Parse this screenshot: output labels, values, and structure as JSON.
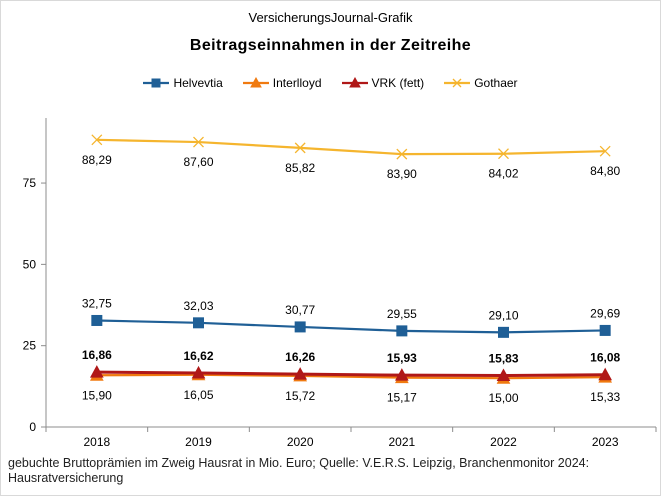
{
  "header": {
    "source": "VersicherungsJournal-Grafik",
    "title": "Beitragseinnahmen  in der Zeitreihe"
  },
  "footnote": "gebuchte Bruttoprämien im Zweig Hausrat in Mio. Euro; Quelle: V.E.R.S. Leipzig, Branchenmonitor  2024: Hausratversicherung",
  "chart_data": {
    "type": "line",
    "title": "Beitragseinnahmen  in der Zeitreihe",
    "xlabel": "",
    "ylabel": "",
    "categories": [
      "2018",
      "2019",
      "2020",
      "2021",
      "2022",
      "2023"
    ],
    "ylim": [
      0,
      95
    ],
    "yticks": [
      "0",
      "25",
      "50",
      "75"
    ],
    "ytick_values": [
      0,
      25,
      50,
      75
    ],
    "legend_position": "top",
    "grid": false,
    "series": [
      {
        "name": "Helvevtia",
        "color": "#1f5f96",
        "marker": "square",
        "bold_labels": false,
        "label_position": "above",
        "values": [
          32.75,
          32.03,
          30.77,
          29.55,
          29.1,
          29.69
        ],
        "labels": [
          "32,75",
          "32,03",
          "30,77",
          "29,55",
          "29,10",
          "29,69"
        ]
      },
      {
        "name": "Interlloyd",
        "color": "#f07a10",
        "marker": "triangle",
        "bold_labels": false,
        "label_position": "below",
        "values": [
          15.9,
          16.05,
          15.72,
          15.17,
          15.0,
          15.33
        ],
        "labels": [
          "15,90",
          "16,05",
          "15,72",
          "15,17",
          "15,00",
          "15,33"
        ]
      },
      {
        "name": "VRK (fett)",
        "color": "#b01818",
        "marker": "triangle",
        "bold_labels": true,
        "label_position": "above",
        "values": [
          16.86,
          16.62,
          16.26,
          15.93,
          15.83,
          16.08
        ],
        "labels": [
          "16,86",
          "16,62",
          "16,26",
          "15,93",
          "15,83",
          "16,08"
        ]
      },
      {
        "name": "Gothaer",
        "color": "#f5b52e",
        "marker": "x",
        "bold_labels": false,
        "label_position": "below",
        "values": [
          88.29,
          87.6,
          85.82,
          83.9,
          84.02,
          84.8
        ],
        "labels": [
          "88,29",
          "87,60",
          "85,82",
          "83,90",
          "84,02",
          "84,80"
        ]
      }
    ]
  }
}
